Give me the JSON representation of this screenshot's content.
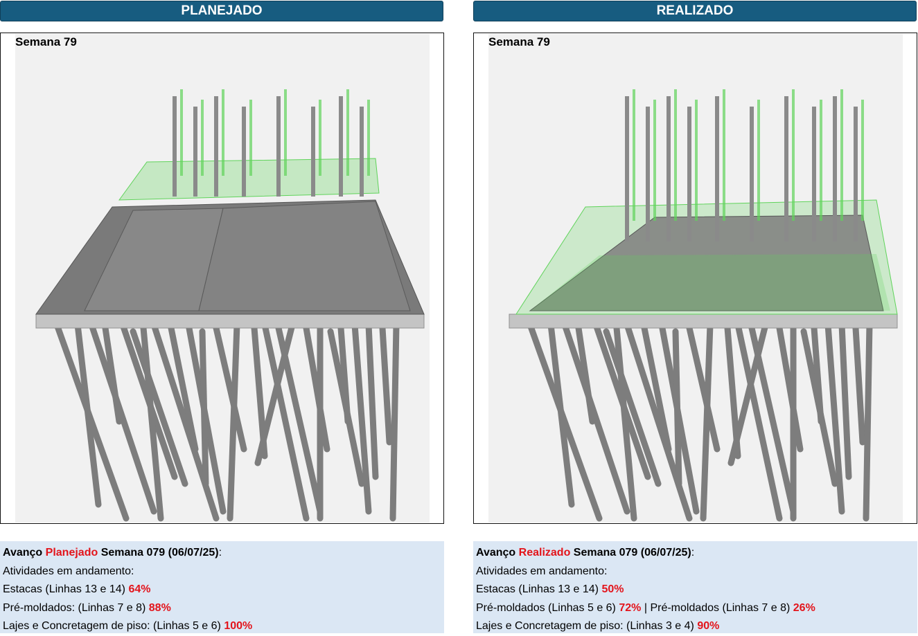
{
  "planned": {
    "header": "PLANEJADO",
    "week_label": "Semana 79",
    "info": {
      "title_prefix": "Avanço",
      "title_highlight": "Planejado",
      "title_suffix": "Semana 079 (06/07/25)",
      "title_colon": ":",
      "subtitle": "Atividades em andamento:",
      "estacas_text": "Estacas (Linhas 13 e 14)",
      "estacas_pct": "64%",
      "premoldados_text": "Pré-moldados: (Linhas 7 e 8)",
      "premoldados_pct": "88%",
      "lajes_text": "Lajes e Concretagem de piso: (Linhas 5 e 6)",
      "lajes_pct": "100%"
    }
  },
  "actual": {
    "header": "REALIZADO",
    "week_label": "Semana 79",
    "info": {
      "title_prefix": "Avanço",
      "title_highlight": "Realizado",
      "title_suffix": "Semana 079 (06/07/25)",
      "title_colon": ":",
      "subtitle": "Atividades em andamento:",
      "estacas_text": "Estacas (Linhas 13 e 14)",
      "estacas_pct": "50%",
      "premoldados_a_text": "Pré-moldados (Linhas 5 e 6)",
      "premoldados_a_pct": "72%",
      "separator": "|",
      "premoldados_b_text": "Pré-moldados (Linhas 7 e 8)",
      "premoldados_b_pct": "26%",
      "lajes_text": "Lajes e Concretagem de piso: (Linhas 3 e 4)",
      "lajes_pct": "90%"
    }
  },
  "colors": {
    "header_bg": "#175c80",
    "info_bg": "#dbe7f4",
    "highlight_red": "#e3141b",
    "model_green": "#5fd35a",
    "model_grey": "#8a8a8a"
  }
}
